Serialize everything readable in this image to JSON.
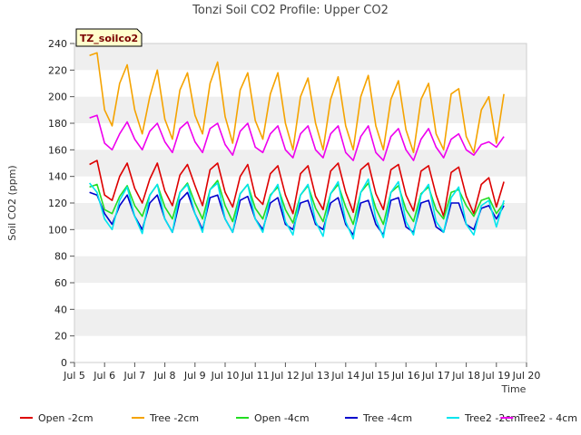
{
  "chart_data": {
    "type": "line",
    "title": "Tonzi Soil CO2 Profile: Upper CO2",
    "xlabel": "Time",
    "ylabel": "Soil CO2 (ppm)",
    "tag": "TZ_soilco2",
    "ylim": [
      0,
      240
    ],
    "yticks": [
      0,
      20,
      40,
      60,
      80,
      100,
      120,
      140,
      160,
      180,
      200,
      220,
      240
    ],
    "xlim": [
      5,
      20
    ],
    "xticks": [
      {
        "value": 5,
        "label": "Jul 5"
      },
      {
        "value": 6,
        "label": "Jul 6"
      },
      {
        "value": 7,
        "label": "Jul 7"
      },
      {
        "value": 8,
        "label": "Jul 8"
      },
      {
        "value": 9,
        "label": "Jul 9"
      },
      {
        "value": 10,
        "label": "Jul 10"
      },
      {
        "value": 11,
        "label": "Jul 11"
      },
      {
        "value": 12,
        "label": "Jul 12"
      },
      {
        "value": 13,
        "label": "Jul 13"
      },
      {
        "value": 14,
        "label": "Jul 14"
      },
      {
        "value": 15,
        "label": "Jul 15"
      },
      {
        "value": 16,
        "label": "Jul 16"
      },
      {
        "value": 17,
        "label": "Jul 17"
      },
      {
        "value": 18,
        "label": "Jul 18"
      },
      {
        "value": 19,
        "label": "Jul 19"
      },
      {
        "value": 20,
        "label": "Jul 20"
      }
    ],
    "x": [
      5.5,
      5.75,
      6,
      6.25,
      6.5,
      6.75,
      7,
      7.25,
      7.5,
      7.75,
      8,
      8.25,
      8.5,
      8.75,
      9,
      9.25,
      9.5,
      9.75,
      10,
      10.25,
      10.5,
      10.75,
      11,
      11.25,
      11.5,
      11.75,
      12,
      12.25,
      12.5,
      12.75,
      13,
      13.25,
      13.5,
      13.75,
      14,
      14.25,
      14.5,
      14.75,
      15,
      15.25,
      15.5,
      15.75,
      16,
      16.25,
      16.5,
      16.75,
      17,
      17.25,
      17.5,
      17.75,
      18,
      18.25,
      18.5,
      18.75,
      19,
      19.25
    ],
    "series": [
      {
        "name": "Open -2cm",
        "color": "#dd0000",
        "values": [
          149,
          152,
          126,
          122,
          140,
          150,
          131,
          120,
          138,
          150,
          129,
          118,
          141,
          149,
          133,
          118,
          145,
          150,
          128,
          117,
          140,
          149,
          125,
          119,
          142,
          148,
          126,
          112,
          142,
          148,
          125,
          115,
          144,
          150,
          128,
          113,
          145,
          150,
          127,
          115,
          145,
          149,
          126,
          114,
          144,
          148,
          126,
          110,
          143,
          147,
          125,
          112,
          134,
          139,
          117,
          136
        ]
      },
      {
        "name": "Tree -2cm",
        "color": "#f5a300",
        "values": [
          231,
          233,
          190,
          178,
          210,
          224,
          190,
          172,
          200,
          220,
          183,
          168,
          205,
          218,
          186,
          172,
          210,
          226,
          185,
          165,
          205,
          218,
          182,
          168,
          202,
          218,
          180,
          160,
          200,
          214,
          180,
          160,
          198,
          215,
          178,
          160,
          200,
          216,
          178,
          160,
          198,
          212,
          175,
          158,
          198,
          210,
          172,
          160,
          202,
          206,
          170,
          158,
          190,
          200,
          165,
          202
        ]
      },
      {
        "name": "Open -4cm",
        "color": "#22dd22",
        "values": [
          132,
          134,
          115,
          112,
          125,
          133,
          118,
          110,
          126,
          134,
          117,
          108,
          128,
          135,
          120,
          108,
          130,
          137,
          118,
          106,
          127,
          134,
          116,
          108,
          126,
          132,
          115,
          105,
          126,
          133,
          116,
          106,
          127,
          134,
          117,
          104,
          128,
          135,
          116,
          104,
          128,
          133,
          115,
          106,
          127,
          132,
          115,
          108,
          128,
          130,
          118,
          110,
          122,
          124,
          112,
          120
        ]
      },
      {
        "name": "Tree -4cm",
        "color": "#0000cc",
        "values": [
          128,
          126,
          112,
          104,
          118,
          126,
          110,
          100,
          120,
          126,
          108,
          98,
          122,
          128,
          112,
          100,
          124,
          126,
          108,
          98,
          122,
          125,
          108,
          100,
          120,
          124,
          104,
          100,
          120,
          122,
          104,
          100,
          120,
          124,
          104,
          96,
          120,
          122,
          104,
          96,
          122,
          124,
          102,
          98,
          120,
          122,
          102,
          98,
          120,
          120,
          104,
          100,
          116,
          118,
          108,
          118
        ]
      },
      {
        "name": "Tree2 -2cm",
        "color": "#00e5ee",
        "values": [
          135,
          128,
          108,
          100,
          122,
          132,
          110,
          97,
          126,
          134,
          108,
          98,
          128,
          134,
          112,
          98,
          130,
          135,
          108,
          98,
          127,
          134,
          108,
          98,
          125,
          134,
          106,
          96,
          126,
          134,
          106,
          95,
          127,
          136,
          106,
          93,
          128,
          138,
          108,
          94,
          128,
          136,
          106,
          96,
          126,
          134,
          106,
          98,
          124,
          132,
          104,
          96,
          118,
          122,
          102,
          122
        ]
      },
      {
        "name": "Tree2 - 4cm",
        "color": "#ee00ee",
        "values": [
          184,
          186,
          165,
          160,
          172,
          181,
          168,
          160,
          174,
          180,
          166,
          158,
          176,
          181,
          166,
          158,
          176,
          180,
          164,
          156,
          174,
          180,
          162,
          158,
          172,
          178,
          160,
          154,
          172,
          178,
          160,
          154,
          172,
          178,
          158,
          152,
          170,
          178,
          158,
          152,
          170,
          176,
          160,
          152,
          168,
          176,
          162,
          154,
          168,
          172,
          160,
          156,
          164,
          166,
          162,
          170
        ]
      }
    ]
  }
}
